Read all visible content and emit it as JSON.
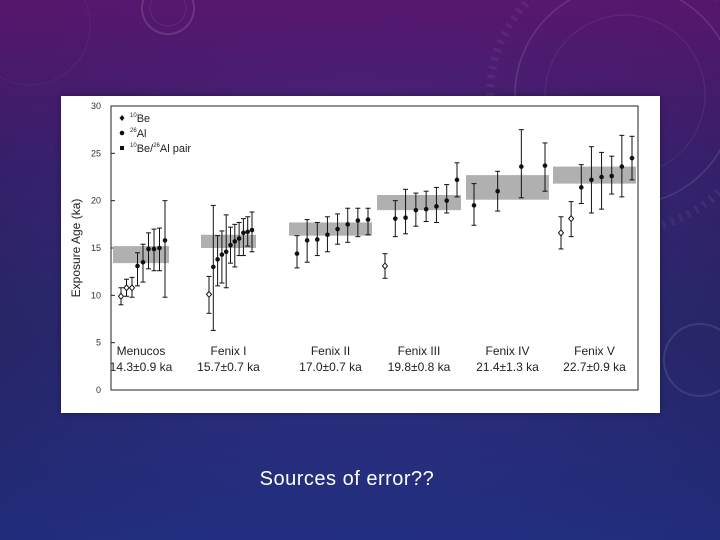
{
  "slide": {
    "caption": "Sources of error??"
  },
  "colors": {
    "band": "#b0b0b0",
    "marker": "#111111",
    "frame": "#222222"
  },
  "chart_data": {
    "type": "scatter",
    "ylabel": "Exposure Age (ka)",
    "ylim": [
      0,
      30
    ],
    "yticks": [
      0,
      5,
      10,
      15,
      20,
      25,
      30
    ],
    "grid": false,
    "legend_placement": "top-left",
    "legend": [
      {
        "marker": "diamond",
        "label": "10Be",
        "sup": "10",
        "base": "Be"
      },
      {
        "marker": "circle",
        "label": "26Al",
        "sup": "26",
        "base": "Al"
      },
      {
        "marker": "square",
        "label": "10Be/26Al pair",
        "sup1": "10",
        "mid": "Be/",
        "sup2": "26",
        "tail": "Al pair"
      }
    ],
    "groups": [
      {
        "name": "Menucos",
        "age": "14.3±0.9 ka",
        "mean": 14.3,
        "band": [
          13.4,
          15.2
        ],
        "points": [
          {
            "y": 9.9,
            "lo": 9.0,
            "hi": 10.8,
            "open": true
          },
          {
            "y": 10.8,
            "lo": 9.9,
            "hi": 11.7,
            "open": true
          },
          {
            "y": 10.8,
            "lo": 9.8,
            "hi": 11.9,
            "open": true
          },
          {
            "y": 13.1,
            "lo": 11.0,
            "hi": 14.5
          },
          {
            "y": 13.5,
            "lo": 11.4,
            "hi": 15.4
          },
          {
            "y": 14.9,
            "lo": 12.8,
            "hi": 16.6
          },
          {
            "y": 14.9,
            "lo": 12.6,
            "hi": 17.0
          },
          {
            "y": 15.0,
            "lo": 12.6,
            "hi": 17.1
          },
          {
            "y": 15.8,
            "lo": 9.8,
            "hi": 20.0
          }
        ]
      },
      {
        "name": "Fenix I",
        "age": "15.7±0.7 ka",
        "mean": 15.7,
        "band": [
          15.0,
          16.4
        ],
        "points": [
          {
            "y": 10.1,
            "lo": 8.1,
            "hi": 12.0,
            "open": true
          },
          {
            "y": 13.0,
            "lo": 6.3,
            "hi": 19.5
          },
          {
            "y": 13.8,
            "lo": 11.0,
            "hi": 16.3
          },
          {
            "y": 14.3,
            "lo": 11.3,
            "hi": 16.8
          },
          {
            "y": 14.6,
            "lo": 10.8,
            "hi": 18.5
          },
          {
            "y": 15.3,
            "lo": 13.4,
            "hi": 17.2
          },
          {
            "y": 15.7,
            "lo": 13.0,
            "hi": 17.5
          },
          {
            "y": 16.0,
            "lo": 14.2,
            "hi": 17.7
          },
          {
            "y": 16.6,
            "lo": 14.2,
            "hi": 18.1
          },
          {
            "y": 16.7,
            "lo": 15.2,
            "hi": 18.3
          },
          {
            "y": 16.9,
            "lo": 14.6,
            "hi": 18.8
          }
        ]
      },
      {
        "name": "Fenix II",
        "age": "17.0±0.7 ka",
        "mean": 17.0,
        "band": [
          16.3,
          17.7
        ],
        "points": [
          {
            "y": 14.4,
            "lo": 12.9,
            "hi": 16.3
          },
          {
            "y": 15.8,
            "lo": 13.5,
            "hi": 18.0
          },
          {
            "y": 15.9,
            "lo": 14.2,
            "hi": 17.7
          },
          {
            "y": 16.4,
            "lo": 14.6,
            "hi": 18.3
          },
          {
            "y": 17.0,
            "lo": 15.4,
            "hi": 18.6
          },
          {
            "y": 17.5,
            "lo": 15.6,
            "hi": 19.2
          },
          {
            "y": 17.9,
            "lo": 16.2,
            "hi": 19.2
          },
          {
            "y": 18.0,
            "lo": 16.4,
            "hi": 19.2
          }
        ]
      },
      {
        "name": "Fenix III",
        "age": "19.8±0.8 ka",
        "mean": 19.8,
        "band": [
          19.0,
          20.6
        ],
        "points": [
          {
            "y": 13.1,
            "lo": 11.8,
            "hi": 14.4,
            "open": true
          },
          {
            "y": 18.1,
            "lo": 16.2,
            "hi": 20.0
          },
          {
            "y": 18.2,
            "lo": 16.5,
            "hi": 21.2
          },
          {
            "y": 19.0,
            "lo": 17.3,
            "hi": 20.8
          },
          {
            "y": 19.1,
            "lo": 17.8,
            "hi": 21.0
          },
          {
            "y": 19.4,
            "lo": 17.7,
            "hi": 21.4
          },
          {
            "y": 20.0,
            "lo": 18.7,
            "hi": 21.7
          },
          {
            "y": 22.2,
            "lo": 20.4,
            "hi": 24.0
          }
        ]
      },
      {
        "name": "Fenix IV",
        "age": "21.4±1.3 ka",
        "mean": 21.4,
        "band": [
          20.1,
          22.7
        ],
        "points": [
          {
            "y": 19.5,
            "lo": 17.4,
            "hi": 21.8
          },
          {
            "y": 21.0,
            "lo": 18.9,
            "hi": 23.1
          },
          {
            "y": 23.6,
            "lo": 20.3,
            "hi": 27.5
          },
          {
            "y": 23.7,
            "lo": 21.0,
            "hi": 26.1
          }
        ]
      },
      {
        "name": "Fenix V",
        "age": "22.7±0.9 ka",
        "mean": 22.7,
        "band": [
          21.8,
          23.6
        ],
        "points": [
          {
            "y": 16.6,
            "lo": 14.9,
            "hi": 18.3,
            "open": true
          },
          {
            "y": 18.1,
            "lo": 16.2,
            "hi": 19.9,
            "open": true
          },
          {
            "y": 21.4,
            "lo": 19.7,
            "hi": 23.8
          },
          {
            "y": 22.2,
            "lo": 18.7,
            "hi": 25.7
          },
          {
            "y": 22.5,
            "lo": 19.1,
            "hi": 25.1
          },
          {
            "y": 22.6,
            "lo": 20.7,
            "hi": 24.7
          },
          {
            "y": 23.6,
            "lo": 20.4,
            "hi": 26.9
          },
          {
            "y": 24.5,
            "lo": 22.2,
            "hi": 26.8
          }
        ]
      }
    ]
  }
}
